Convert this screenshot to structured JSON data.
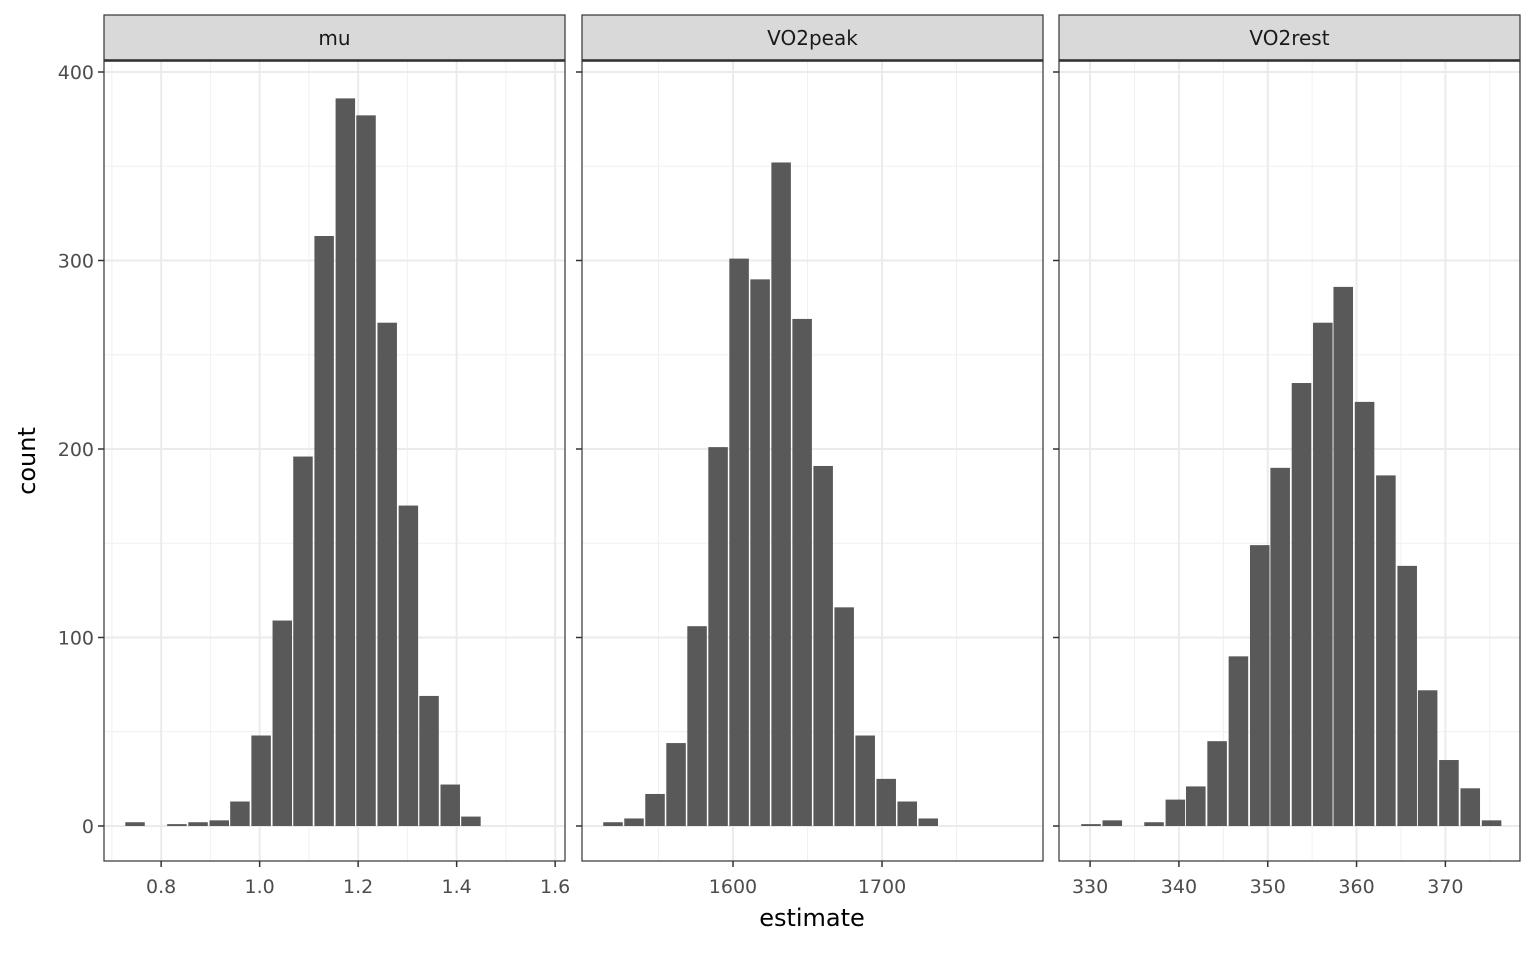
{
  "chart_data": {
    "type": "bar",
    "subtype": "faceted histogram",
    "xlabel": "estimate",
    "ylabel": "count",
    "ylim": [
      0,
      400
    ],
    "yticks": [
      0,
      100,
      200,
      300,
      400
    ],
    "ytick_labels": [
      "0",
      "100",
      "200",
      "300",
      "400"
    ],
    "grid": true,
    "bar_color": "#595959",
    "strip_color": "#d9d9d9",
    "panels": [
      {
        "label": "mu",
        "xlim": [
          0.684,
          1.62
        ],
        "xticks": [
          0.8,
          1.0,
          1.2,
          1.4,
          1.6
        ],
        "xtick_labels": [
          "0.8",
          "1.0",
          "1.2",
          "1.4",
          "1.6"
        ],
        "xminor": [
          0.7,
          0.9,
          1.1,
          1.3,
          1.5
        ],
        "binwidth": 0.0426,
        "bin_centers": [
          0.747,
          0.79,
          0.832,
          0.875,
          0.918,
          0.96,
          1.003,
          1.046,
          1.088,
          1.131,
          1.174,
          1.216,
          1.259,
          1.302,
          1.344,
          1.387,
          1.429
        ],
        "counts": [
          2,
          0,
          1,
          2,
          3,
          13,
          48,
          109,
          196,
          313,
          386,
          377,
          267,
          170,
          69,
          22,
          5
        ]
      },
      {
        "label": "VO2peak",
        "xlim": [
          1498.7,
          1808
        ],
        "xticks": [
          1600,
          1700
        ],
        "xtick_labels": [
          "1600",
          "1700"
        ],
        "xminor": [
          1550,
          1650,
          1750
        ],
        "binwidth": 14.1,
        "bin_centers": [
          1519.5,
          1533.6,
          1547.7,
          1561.8,
          1575.9,
          1590.0,
          1604.1,
          1618.2,
          1632.3,
          1646.4,
          1660.5,
          1674.6,
          1688.7,
          1702.8,
          1716.9,
          1731.0
        ],
        "counts": [
          2,
          4,
          17,
          44,
          106,
          201,
          301,
          290,
          352,
          269,
          191,
          116,
          48,
          25,
          13,
          4
        ]
      },
      {
        "label": "VO2rest",
        "xlim": [
          326.5,
          378.4
        ],
        "xticks": [
          330,
          340,
          350,
          360,
          370
        ],
        "xtick_labels": [
          "330",
          "340",
          "350",
          "360",
          "370"
        ],
        "xminor": [
          335,
          345,
          355,
          365,
          375
        ],
        "binwidth": 2.37,
        "bin_centers": [
          330.1,
          332.5,
          334.8,
          337.2,
          339.6,
          341.9,
          344.3,
          346.7,
          349.1,
          351.4,
          353.8,
          356.2,
          358.5,
          360.9,
          363.3,
          365.7,
          368.0,
          370.4,
          372.8,
          375.2
        ],
        "counts": [
          1,
          3,
          0,
          2,
          14,
          21,
          45,
          90,
          149,
          190,
          235,
          267,
          286,
          225,
          186,
          138,
          72,
          35,
          20,
          3
        ]
      }
    ]
  }
}
